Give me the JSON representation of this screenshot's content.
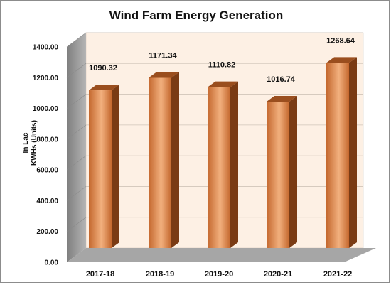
{
  "chart_data": {
    "type": "bar",
    "title": "Wind Farm Energy Generation",
    "ylabel_line1": "In Lac",
    "ylabel_line2": "KWHs (Units)",
    "categories": [
      "2017-18",
      "2018-19",
      "2019-20",
      "2020-21",
      "2021-22"
    ],
    "values": [
      1090.32,
      1171.34,
      1110.82,
      1016.74,
      1268.64
    ],
    "value_labels": [
      "1090.32",
      "1171.34",
      "1110.82",
      "1016.74",
      "1268.64"
    ],
    "yticks": [
      "0.00",
      "200.00",
      "400.00",
      "600.00",
      "800.00",
      "1000.00",
      "1200.00",
      "1400.00"
    ],
    "ylim": [
      0,
      1400
    ],
    "grid": true,
    "legend": "none",
    "style": "3d-cylinder",
    "colors": {
      "bar_light": "#f2b07e",
      "bar_mid": "#c4682e",
      "bar_dark": "#7a3b14",
      "bar_top": "#9a4e1e",
      "back_wall": "#fdf0e4",
      "side_wall": "#9c9c9c",
      "floor": "#a6a6a6",
      "grid": "#d0c4b8"
    }
  }
}
